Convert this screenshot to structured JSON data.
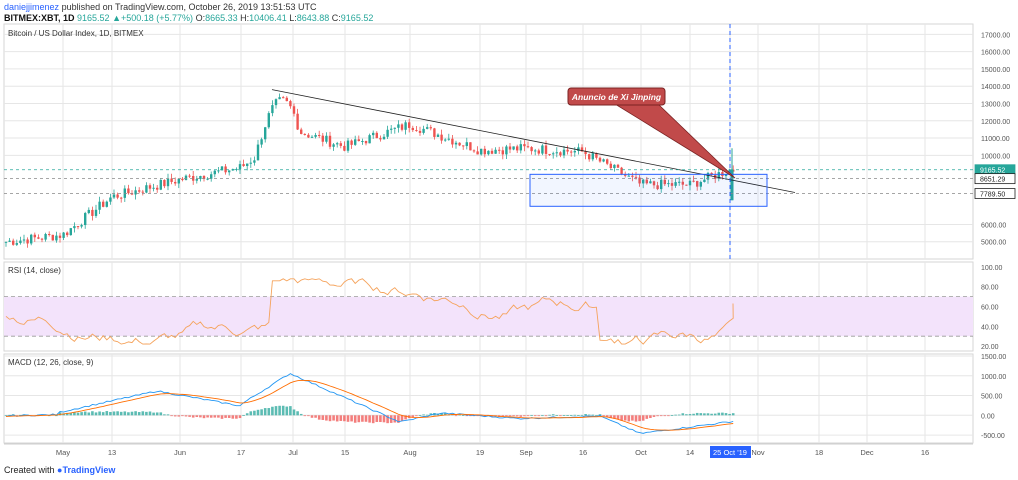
{
  "header": {
    "user": "daniejjimenez",
    "published_text": "published on TradingView.com, October 26, 2019 13:51:53 UTC",
    "symbol": "BITMEX:XBT, 1D",
    "price": "9165.52",
    "change": "▲+500.18 (+5.77%)",
    "ohlc_o_label": "O:",
    "ohlc_o": "8665.33",
    "ohlc_h_label": "H:",
    "ohlc_h": "10406.41",
    "ohlc_l_label": "L:",
    "ohlc_l": "8643.88",
    "ohlc_c_label": "C:",
    "ohlc_c": "9165.52"
  },
  "footer": {
    "created_with": "Created with",
    "brand": "TradingView"
  },
  "colors": {
    "up": "#26a69a",
    "down": "#ef5350",
    "grid": "#e6e6e6",
    "accent": "#2962ff",
    "rsi": "#f5a35c",
    "rsi_band": "#f3e3fb",
    "macd": "#2196f3",
    "signal": "#ff6d00"
  },
  "chart_data": [
    {
      "type": "candlestick",
      "title": "Bitcoin / US Dollar Index, 1D, BITMEX",
      "x": [
        "May",
        "13",
        "Jun",
        "17",
        "Jul",
        "15",
        "Aug",
        "19",
        "Sep",
        "16",
        "Oct",
        "14",
        "25 Oct '19",
        "Nov",
        "18",
        "Dec",
        "16"
      ],
      "ylim": [
        4000,
        17600
      ],
      "y_ticks": [
        "17000.00",
        "16000.00",
        "15000.00",
        "14000.00",
        "13000.00",
        "12000.00",
        "11000.00",
        "10000.00",
        "6000.00",
        "5000.00"
      ],
      "price_labels": [
        "9165.52",
        "8651.29",
        "7789.50"
      ],
      "annotation": "Anuncio de Xi Jinping",
      "close_approx": [
        {
          "x": "May",
          "y": 5400
        },
        {
          "x": "13",
          "y": 7600
        },
        {
          "x": "Jun",
          "y": 8600
        },
        {
          "x": "17",
          "y": 9300
        },
        {
          "x": "Jul",
          "y": 11500
        },
        {
          "x": "15",
          "y": 10500
        },
        {
          "x": "Aug",
          "y": 11800
        },
        {
          "x": "19",
          "y": 10300
        },
        {
          "x": "Sep",
          "y": 10400
        },
        {
          "x": "16",
          "y": 10200
        },
        {
          "x": "Oct",
          "y": 8300
        },
        {
          "x": "14",
          "y": 8300
        },
        {
          "x": "25 Oct '19",
          "y": 9165.52
        }
      ]
    },
    {
      "type": "line",
      "title": "RSI (14, close)",
      "ylim": [
        15,
        105
      ],
      "y_ticks": [
        "100.00",
        "80.00",
        "60.00",
        "40.00",
        "20.00"
      ],
      "band": [
        30,
        70
      ]
    },
    {
      "type": "line",
      "title": "MACD (12, 26, close, 9)",
      "ylim": [
        -700,
        1550
      ],
      "y_ticks": [
        "1500.00",
        "1000.00",
        "500.00",
        "0.00",
        "-500.00"
      ]
    }
  ]
}
